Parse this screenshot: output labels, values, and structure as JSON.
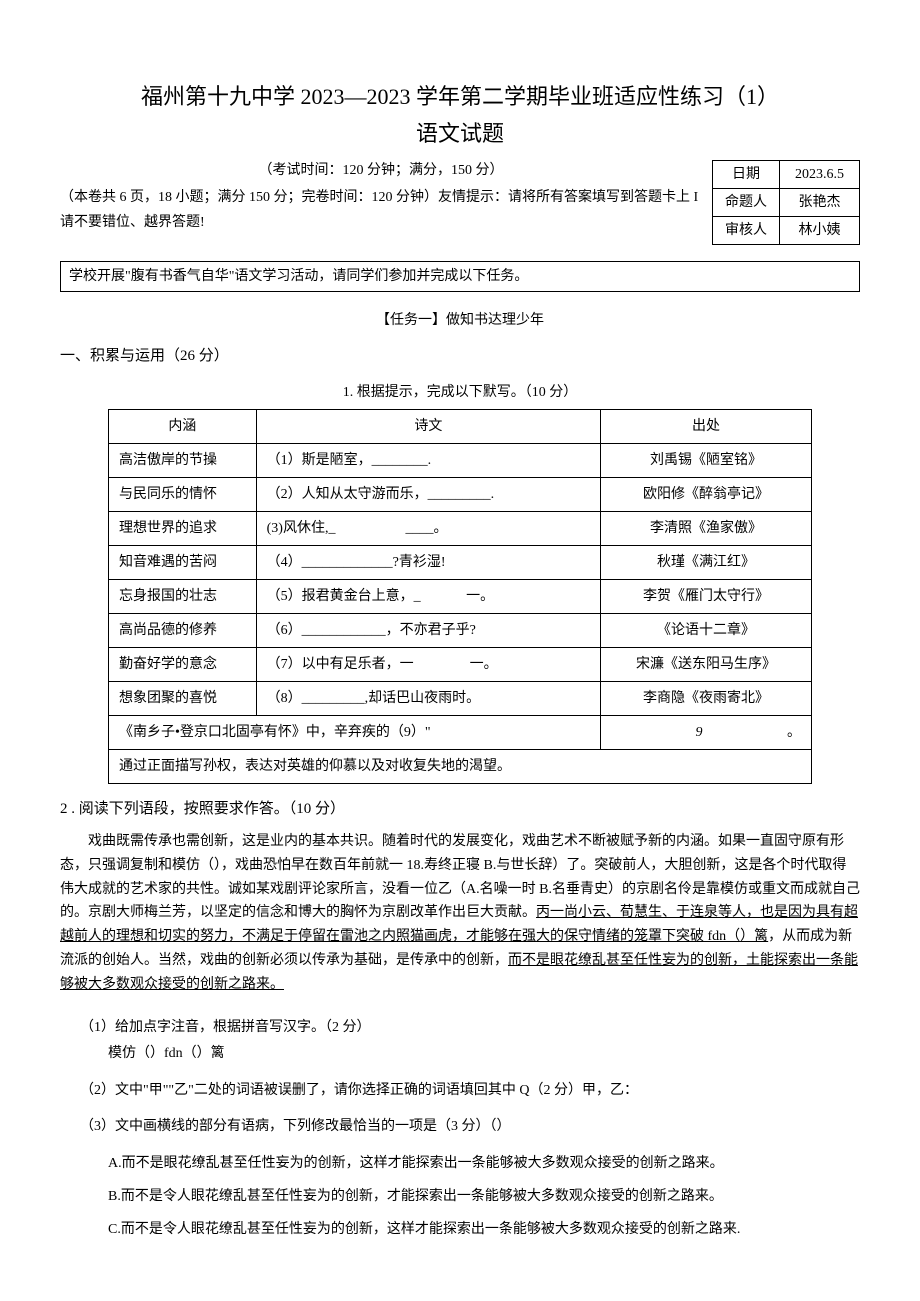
{
  "header": {
    "title_main": "福州第十九中学 2023—2023 学年第二学期毕业班适应性练习（1）",
    "title_sub": "语文试题",
    "exam_info": "（考试时间：120 分钟；满分，150 分）",
    "paper_info": "（本卷共 6 页，18 小题；满分 150 分；完卷时间：120 分钟）友情提示：请将所有答案填写到答题卡上 I 请不要错位、越界答题!"
  },
  "info_table": {
    "rows": [
      {
        "label": "日期",
        "value": "2023.6.5"
      },
      {
        "label": "命题人",
        "value": "张艳杰"
      },
      {
        "label": "审核人",
        "value": "林小姨"
      }
    ]
  },
  "activity_box": "学校开展\"腹有书香气自华\"语文学习活动，请同学们参加并完成以下任务。",
  "task_title": "【任务一】做知书达理少年",
  "section1_title": "一、积累与运用（26 分）",
  "poetry_caption": "1. 根据提示，完成以下默写。（10 分）",
  "poetry_table": {
    "headers": {
      "meaning": "内涵",
      "poem": "诗文",
      "source": "出处"
    },
    "rows": [
      {
        "meaning": "高洁傲岸的节操",
        "poem": "（1）斯是陋室，________.",
        "source": "刘禹锡《陋室铭》"
      },
      {
        "meaning": "与民同乐的情怀",
        "poem": "（2）人知从太守游而乐，_________.",
        "source": "欧阳修《醉翁亭记》"
      },
      {
        "meaning": "理想世界的追求",
        "poem": "(3)风休住,_　　　　　____。",
        "source": "李清照《渔家傲》"
      },
      {
        "meaning": "知音难遇的苦闷",
        "poem": "（4）_____________?青衫湿!",
        "source": "秋瑾《满江红》"
      },
      {
        "meaning": "忘身报国的壮志",
        "poem": "（5）报君黄金台上意，_ 　　　一。",
        "source": "李贺《雁门太守行》"
      },
      {
        "meaning": "高尚品德的修养",
        "poem": "（6）____________，不亦君子乎?",
        "source": "《论语十二章》"
      },
      {
        "meaning": "勤奋好学的意念",
        "poem": "（7）以中有足乐者，一　　　　一。",
        "source": "宋濂《送东阳马生序》"
      },
      {
        "meaning": "想象团聚的喜悦",
        "poem": "（8）_________,却话巴山夜雨时。",
        "source": "李商隐《夜雨寄北》"
      }
    ],
    "span_row_left": "《南乡子•登京口北固亭有怀》中，辛弃疾的（9）\"",
    "span_row_right": "9",
    "span_row_end": "。",
    "last_row": "通过正面描写孙权，表达对英雄的仰慕以及对收复失地的渴望。"
  },
  "q2": {
    "title": "2 . 阅读下列语段，按照要求作答。（10 分）",
    "passage_pre": "戏曲既需传承也需创新，这是业内的基本共识。随着时代的发展变化，戏曲艺术不断被赋予新的内涵。如果一直固守原有形态，只强调复制和模仿（），戏曲恐怕早在数百年前就一 18.寿终正寝 B.与世长辞）了。突破前人，大胆创新，这是各个时代取得伟大成就的艺术家的共性。诚如某戏剧评论家所言，没看一位乙（A.名噪一时 B.名垂青史）的京剧名伶是靠模仿或重文而成就自己的。京剧大师梅兰芳，以坚定的信念和博大的胸怀为京剧改革作出巨大贡献。",
    "passage_u1": "丙一尚小云、荀慧生、于连泉等人，也是因为具有超越前人的理想和切实的努力，不满足于停留在雷池之内照猫画虎，才能够在强大的保守情绪的笼罩下突破 fdn（）篱",
    "passage_mid": "，从而成为新流派的创始人。当然，戏曲的创新必须以传承为基础，是传承中的创新，",
    "passage_u2": "而不是眼花缭乱甚至任性妄为的创新，土能探索出一条能够被大多数观众接受的创新之路来。",
    "sub1_label": "（1）给加点字注音，根据拼音写汉字。（2 分）",
    "sub1_text": "模仿（）fdn（）篱",
    "sub2": "（2）文中\"甲\"\"乙\"二处的词语被误删了，请你选择正确的词语填回其中 Q（2 分）甲，乙：",
    "sub3_label": "（3）文中画横线的部分有语病，下列修改最恰当的一项是（3 分）（）",
    "options": {
      "A": "A.而不是眼花缭乱甚至任性妄为的创新，这样才能探索出一条能够被大多数观众接受的创新之路来。",
      "B": "B.而不是令人眼花缭乱甚至任性妄为的创新，才能探索出一条能够被大多数观众接受的创新之路来。",
      "C": "C.而不是令人眼花缭乱甚至任性妄为的创新，这样才能探索出一条能够被大多数观众接受的创新之路来."
    }
  }
}
